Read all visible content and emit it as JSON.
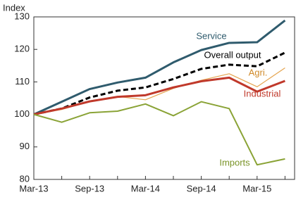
{
  "chart_data": {
    "type": "line",
    "y_label": "Index",
    "categories": [
      "Mar-13",
      null,
      "Sep-13",
      null,
      "Mar-14",
      null,
      "Sep-14",
      null,
      "Mar-15",
      null
    ],
    "ylim": [
      80,
      130
    ],
    "yticks": [
      80,
      90,
      100,
      110,
      120,
      130
    ],
    "series": [
      {
        "name": "Service",
        "color": "#2f5b6d",
        "width": 3,
        "dashed": false,
        "values": [
          100,
          103.9,
          107.8,
          109.8,
          111.3,
          116,
          119.8,
          122,
          122.2,
          128.9
        ]
      },
      {
        "name": "Overall output",
        "color": "#000000",
        "width": 3,
        "dashed": true,
        "values": [
          100,
          101.8,
          105.2,
          107.3,
          108.3,
          110.9,
          114,
          115.3,
          114.8,
          119
        ]
      },
      {
        "name": "Agri.",
        "color": "#e5a550",
        "width": 1.2,
        "dashed": false,
        "values": [
          100,
          101.5,
          104,
          105.5,
          104.5,
          108,
          110.5,
          112.5,
          108.5,
          114.3
        ]
      },
      {
        "name": "Industrial",
        "color": "#c0392b",
        "width": 3,
        "dashed": false,
        "values": [
          100,
          101.8,
          104,
          105.4,
          105.9,
          108.3,
          110.2,
          111.3,
          107,
          110.3
        ]
      },
      {
        "name": "Imports",
        "color": "#8aa336",
        "width": 2,
        "dashed": false,
        "values": [
          100,
          97.6,
          100.5,
          101,
          103.2,
          99.6,
          103.9,
          101.8,
          84.5,
          86.3
        ]
      }
    ]
  }
}
